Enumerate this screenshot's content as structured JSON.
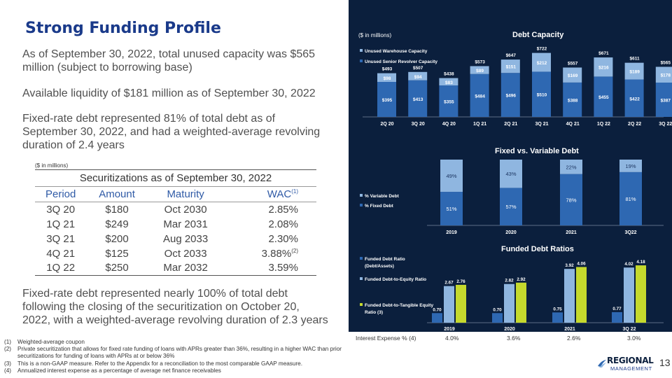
{
  "title": "Strong Funding Profile",
  "bullets": [
    "As of September 30, 2022, total unused capacity was $565 million (subject to borrowing base)",
    "Available liquidity of $181 million as of September 30, 2022",
    "Fixed-rate debt represented 81% of total debt as of September 30, 2022, and had a weighted-average revolving duration of 2.4 years",
    "Fixed-rate debt represented nearly 100% of total debt following the closing of the securitization on October 20, 2022, with a weighted-average revolving duration of 2.3 years"
  ],
  "table": {
    "units_note": "($ in millions)",
    "caption": "Securitizations as of September 30, 2022",
    "headers": [
      "Period",
      "Amount",
      "Maturity",
      "WAC"
    ],
    "wac_footnote": "(1)",
    "rows": [
      {
        "period": "3Q 20",
        "amount": "$180",
        "maturity": "Oct 2030",
        "wac": "2.85%",
        "note": ""
      },
      {
        "period": "1Q 21",
        "amount": "$249",
        "maturity": "Mar 2031",
        "wac": "2.08%",
        "note": ""
      },
      {
        "period": "3Q 21",
        "amount": "$200",
        "maturity": "Aug 2033",
        "wac": "2.30%",
        "note": ""
      },
      {
        "period": "4Q 21",
        "amount": "$125",
        "maturity": "Oct 2033",
        "wac": "3.88%",
        "note": "(2)"
      },
      {
        "period": "1Q 22",
        "amount": "$250",
        "maturity": "Mar 2032",
        "wac": "3.59%",
        "note": ""
      }
    ]
  },
  "footnotes": [
    {
      "n": "(1)",
      "text": "Weighted-average coupon"
    },
    {
      "n": "(2)",
      "text": "Private securitization that allows for fixed rate funding of loans with APRs greater than 36%, resulting in a higher WAC than prior securitizations for funding of loans with APRs at or below 36%"
    },
    {
      "n": "(3)",
      "text": "This is a non-GAAP measure. Refer to the Appendix for a reconciliation to the most comparable GAAP measure."
    },
    {
      "n": "(4)",
      "text": "Annualized interest expense as a percentage of average net finance receivables"
    }
  ],
  "interest_expense": {
    "label": "Interest Expense % (4)",
    "values": [
      "4.0%",
      "3.6%",
      "2.6%",
      "3.0%"
    ]
  },
  "logo": {
    "line1": "REGIONAL",
    "line2": "MANAGEMENT"
  },
  "page_number": "13",
  "colors": {
    "navy": "#0b1f3d",
    "dark_blue": "#2e68b2",
    "light_blue": "#8fb6e0",
    "lime": "#c5d92d",
    "title_blue": "#1a3a8a"
  },
  "chart_data": [
    {
      "type": "bar",
      "title": "Debt Capacity",
      "units": "($ in millions)",
      "stacked": true,
      "legend_position": "top-left",
      "categories": [
        "2Q 20",
        "3Q 20",
        "4Q 20",
        "1Q 21",
        "2Q 21",
        "3Q 21",
        "4Q 21",
        "1Q 22",
        "2Q 22",
        "3Q 22"
      ],
      "series": [
        {
          "name": "Unused Senior Revolver Capacity",
          "values": [
            395,
            413,
            355,
            484,
            496,
            510,
            388,
            455,
            422,
            387
          ],
          "labels": [
            "$395",
            "$413",
            "$355",
            "$484",
            "$496",
            "$510",
            "$388",
            "$455",
            "$422",
            "$387"
          ]
        },
        {
          "name": "Unused Warehouse Capacity",
          "values": [
            98,
            94,
            83,
            89,
            151,
            212,
            169,
            216,
            189,
            178
          ],
          "labels": [
            "$98",
            "$94",
            "$83",
            "$89",
            "$151",
            "$212",
            "$169",
            "$216",
            "$189",
            "$178"
          ]
        }
      ],
      "totals": [
        "$493",
        "$507",
        "$438",
        "$573",
        "$647",
        "$722",
        "$557",
        "$671",
        "$611",
        "$565"
      ]
    },
    {
      "type": "bar",
      "title": "Fixed vs. Variable Debt",
      "stacked": true,
      "percent": true,
      "legend_position": "left",
      "categories": [
        "2019",
        "2020",
        "2021",
        "3Q22"
      ],
      "series": [
        {
          "name": "% Fixed Debt",
          "values": [
            51,
            57,
            78,
            81
          ],
          "labels": [
            "51%",
            "57%",
            "78%",
            "81%"
          ]
        },
        {
          "name": "% Variable Debt",
          "values": [
            49,
            43,
            22,
            19
          ],
          "labels": [
            "49%",
            "43%",
            "22%",
            "19%"
          ]
        }
      ]
    },
    {
      "type": "bar",
      "title": "Funded Debt Ratios",
      "legend_position": "left",
      "categories": [
        "2019",
        "2020",
        "2021",
        "3Q 22"
      ],
      "series": [
        {
          "name": "Funded Debt Ratio (Debt/Assets)",
          "values": [
            0.7,
            0.7,
            0.75,
            0.77
          ],
          "labels": [
            "0.70",
            "0.70",
            "0.75",
            "0.77"
          ]
        },
        {
          "name": "Funded Debt-to-Equity Ratio",
          "values": [
            2.67,
            2.82,
            3.92,
            4.02
          ],
          "labels": [
            "2.67",
            "2.82",
            "3.92",
            "4.02"
          ]
        },
        {
          "name": "Funded Debt-to-Tangible Equity Ratio (3)",
          "values": [
            2.76,
            2.92,
            4.06,
            4.18
          ],
          "labels": [
            "2.76",
            "2.92",
            "4.06",
            "4.18"
          ]
        }
      ]
    }
  ]
}
